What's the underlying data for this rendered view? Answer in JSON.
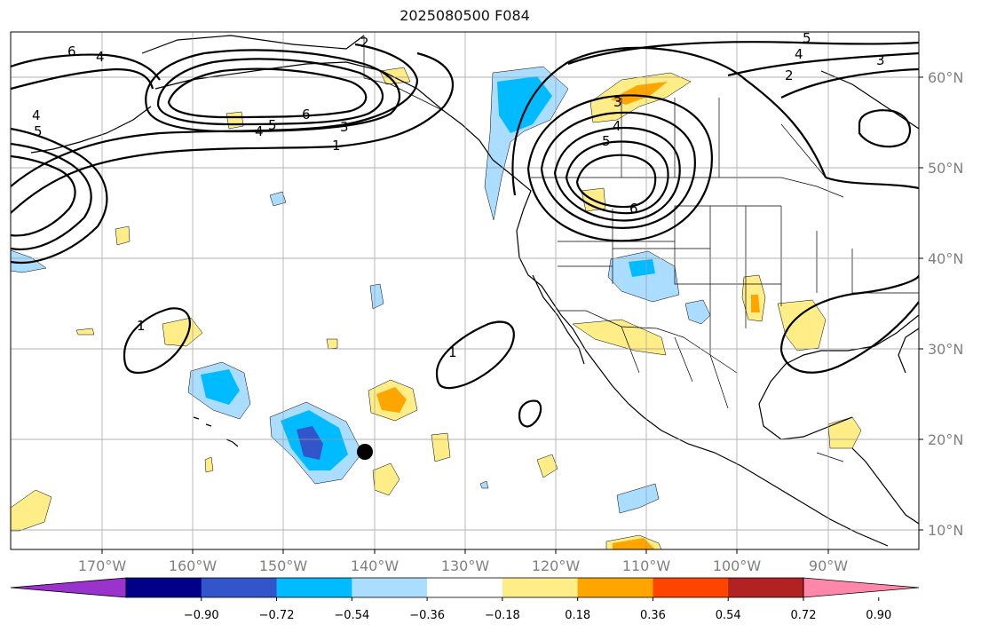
{
  "title": "2025080500 F084",
  "map": {
    "lon_labels": [
      "170°W",
      "160°W",
      "150°W",
      "140°W",
      "130°W",
      "120°W",
      "110°W",
      "100°W",
      "90°W"
    ],
    "lat_labels": [
      "60°N",
      "50°N",
      "40°N",
      "30°N",
      "20°N",
      "10°N"
    ]
  },
  "contour_values": [
    "1",
    "2",
    "3",
    "4",
    "5",
    "6"
  ],
  "marker": {
    "name": "black-dot",
    "color": "#000000"
  },
  "colorbar": {
    "colors": [
      "#9933cc",
      "#000088",
      "#3355cc",
      "#00bbff",
      "#aaddff",
      "#ffffff",
      "#ffee88",
      "#ffa500",
      "#ff4400",
      "#b22222",
      "#ff88aa"
    ],
    "labels": [
      "−0.90",
      "−0.72",
      "−0.54",
      "−0.36",
      "−0.18",
      "0.18",
      "0.36",
      "0.54",
      "0.72",
      "0.90"
    ]
  }
}
